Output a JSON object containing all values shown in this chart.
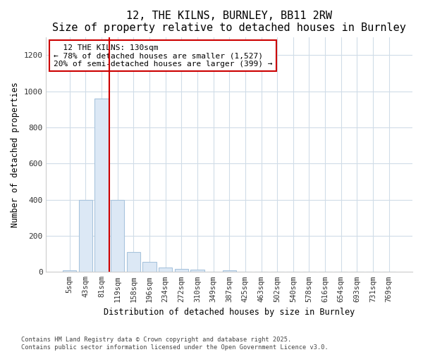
{
  "title1": "12, THE KILNS, BURNLEY, BB11 2RW",
  "title2": "Size of property relative to detached houses in Burnley",
  "xlabel": "Distribution of detached houses by size in Burnley",
  "ylabel": "Number of detached properties",
  "categories": [
    "5sqm",
    "43sqm",
    "81sqm",
    "119sqm",
    "158sqm",
    "196sqm",
    "234sqm",
    "272sqm",
    "310sqm",
    "349sqm",
    "387sqm",
    "425sqm",
    "463sqm",
    "502sqm",
    "540sqm",
    "578sqm",
    "616sqm",
    "654sqm",
    "693sqm",
    "731sqm",
    "769sqm"
  ],
  "values": [
    10,
    400,
    960,
    400,
    110,
    55,
    25,
    18,
    13,
    0,
    8,
    0,
    0,
    0,
    0,
    0,
    0,
    0,
    0,
    0,
    0
  ],
  "bar_color": "#dce8f5",
  "bar_edge_color": "#a8c4dd",
  "red_line_x": 3.0,
  "annotation_text": "  12 THE KILNS: 130sqm  \n← 78% of detached houses are smaller (1,527)\n20% of semi-detached houses are larger (399) →",
  "annotation_box_color": "#ffffff",
  "annotation_box_edge": "#cc0000",
  "ylim": [
    0,
    1300
  ],
  "yticks": [
    0,
    200,
    400,
    600,
    800,
    1000,
    1200
  ],
  "footer1": "Contains HM Land Registry data © Crown copyright and database right 2025.",
  "footer2": "Contains public sector information licensed under the Open Government Licence v3.0.",
  "bg_color": "#ffffff",
  "grid_color": "#d0dce8",
  "red_line_color": "#cc0000",
  "title_fontsize": 11,
  "subtitle_fontsize": 9.5
}
